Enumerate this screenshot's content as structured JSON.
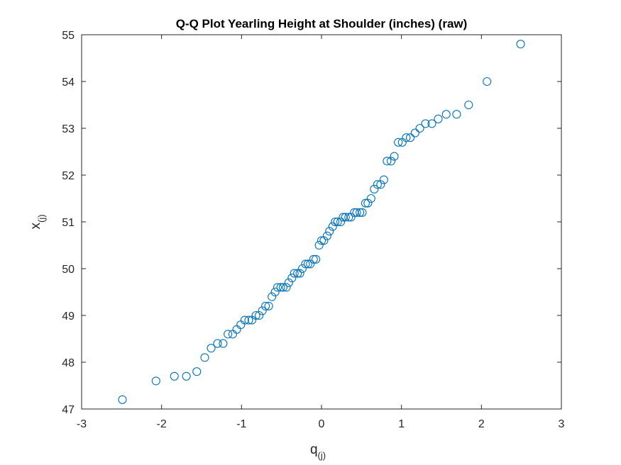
{
  "chart_data": {
    "type": "scatter",
    "title": "Q-Q Plot Yearling Height at Shoulder (inches) (raw)",
    "xlabel": "q",
    "xlabel_sub": "(j)",
    "ylabel": "x",
    "ylabel_sub": "(j)",
    "xlim": [
      -3,
      3
    ],
    "ylim": [
      47,
      55
    ],
    "xticks": [
      -3,
      -2,
      -1,
      0,
      1,
      2,
      3
    ],
    "yticks": [
      47,
      48,
      49,
      50,
      51,
      52,
      53,
      54,
      55
    ],
    "grid": false,
    "marker": "circle-open",
    "color": "#0072BD",
    "series": [
      {
        "x": [
          -2.49,
          -2.07,
          -1.84,
          -1.69,
          -1.56,
          -1.46,
          -1.38,
          -1.3,
          -1.23,
          -1.17,
          -1.11,
          -1.06,
          -1.01,
          -0.96,
          -0.91,
          -0.87,
          -0.82,
          -0.78,
          -0.74,
          -0.7,
          -0.66,
          -0.62,
          -0.58,
          -0.55,
          -0.51,
          -0.48,
          -0.44,
          -0.41,
          -0.37,
          -0.34,
          -0.3,
          -0.27,
          -0.24,
          -0.2,
          -0.17,
          -0.14,
          -0.1,
          -0.07,
          -0.03,
          0.0,
          0.03,
          0.07,
          0.1,
          0.14,
          0.17,
          0.2,
          0.24,
          0.27,
          0.3,
          0.34,
          0.37,
          0.41,
          0.44,
          0.48,
          0.51,
          0.55,
          0.58,
          0.62,
          0.66,
          0.7,
          0.74,
          0.78,
          0.82,
          0.87,
          0.91,
          0.96,
          1.01,
          1.06,
          1.11,
          1.17,
          1.23,
          1.3,
          1.38,
          1.46,
          1.56,
          1.69,
          1.84,
          2.07,
          2.49
        ],
        "y": [
          47.2,
          47.6,
          47.7,
          47.7,
          47.8,
          48.1,
          48.3,
          48.4,
          48.4,
          48.6,
          48.6,
          48.7,
          48.8,
          48.9,
          48.9,
          48.9,
          49.0,
          49.0,
          49.1,
          49.2,
          49.2,
          49.4,
          49.5,
          49.6,
          49.6,
          49.6,
          49.6,
          49.7,
          49.8,
          49.9,
          49.9,
          49.9,
          50.0,
          50.1,
          50.1,
          50.1,
          50.2,
          50.2,
          50.5,
          50.6,
          50.6,
          50.7,
          50.8,
          50.9,
          51.0,
          51.0,
          51.0,
          51.1,
          51.1,
          51.1,
          51.1,
          51.2,
          51.2,
          51.2,
          51.2,
          51.4,
          51.4,
          51.5,
          51.7,
          51.8,
          51.8,
          51.9,
          52.3,
          52.3,
          52.4,
          52.7,
          52.7,
          52.8,
          52.8,
          52.9,
          53.0,
          53.1,
          53.1,
          53.2,
          53.3,
          53.3,
          53.5,
          54.0,
          54.8
        ]
      }
    ]
  }
}
